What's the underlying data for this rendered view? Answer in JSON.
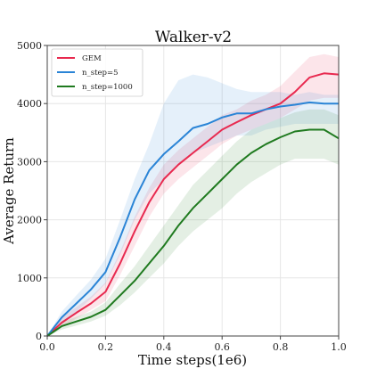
{
  "chart_data": {
    "type": "line",
    "title": "Walker-v2",
    "xlabel": "Time steps(1e6)",
    "ylabel": "Average Return",
    "xlim": [
      0,
      1.0
    ],
    "ylim": [
      0,
      5000
    ],
    "xticks": [
      "0.0",
      "0.2",
      "0.4",
      "0.6",
      "0.8",
      "1.0"
    ],
    "yticks": [
      "0",
      "1000",
      "2000",
      "3000",
      "4000",
      "5000"
    ],
    "grid": true,
    "legend_position": "top-left",
    "series": [
      {
        "name": "GEM",
        "color": "#e8294f",
        "x": [
          0,
          0.05,
          0.1,
          0.15,
          0.2,
          0.25,
          0.3,
          0.35,
          0.4,
          0.45,
          0.5,
          0.55,
          0.6,
          0.65,
          0.7,
          0.75,
          0.8,
          0.85,
          0.9,
          0.95,
          1.0
        ],
        "y": [
          0,
          230,
          400,
          560,
          760,
          1250,
          1800,
          2300,
          2700,
          2950,
          3150,
          3350,
          3550,
          3680,
          3800,
          3900,
          4000,
          4200,
          4450,
          4520,
          4500
        ],
        "band_low": [
          0,
          150,
          300,
          450,
          600,
          1050,
          1550,
          2050,
          2450,
          2700,
          2900,
          3100,
          3300,
          3450,
          3550,
          3650,
          3750,
          3900,
          4050,
          4100,
          4100
        ],
        "band_high": [
          0,
          320,
          500,
          680,
          920,
          1450,
          2050,
          2550,
          2950,
          3200,
          3400,
          3600,
          3800,
          3900,
          4050,
          4150,
          4300,
          4550,
          4800,
          4850,
          4800
        ]
      },
      {
        "name": "n_step=5",
        "color": "#2a84d6",
        "x": [
          0,
          0.05,
          0.1,
          0.15,
          0.2,
          0.25,
          0.3,
          0.35,
          0.4,
          0.45,
          0.5,
          0.55,
          0.6,
          0.65,
          0.7,
          0.75,
          0.8,
          0.85,
          0.9,
          0.95,
          1.0
        ],
        "y": [
          0,
          320,
          560,
          800,
          1100,
          1700,
          2350,
          2850,
          3130,
          3350,
          3580,
          3650,
          3760,
          3830,
          3830,
          3900,
          3950,
          3980,
          4020,
          4000,
          4000
        ],
        "band_low": [
          0,
          220,
          420,
          640,
          900,
          1400,
          2000,
          2450,
          2700,
          2950,
          3150,
          3250,
          3350,
          3450,
          3450,
          3550,
          3600,
          3650,
          3650,
          3650,
          3650
        ],
        "band_high": [
          0,
          420,
          700,
          970,
          1330,
          2000,
          2700,
          3300,
          4000,
          4400,
          4500,
          4450,
          4350,
          4250,
          4200,
          4200,
          4200,
          4150,
          4200,
          4150,
          4150
        ]
      },
      {
        "name": "n_step=1000",
        "color": "#1f7a1f",
        "x": [
          0,
          0.05,
          0.1,
          0.15,
          0.2,
          0.25,
          0.3,
          0.35,
          0.4,
          0.45,
          0.5,
          0.55,
          0.6,
          0.65,
          0.7,
          0.75,
          0.8,
          0.85,
          0.9,
          0.95,
          1.0
        ],
        "y": [
          0,
          170,
          250,
          330,
          450,
          700,
          950,
          1250,
          1550,
          1900,
          2200,
          2450,
          2700,
          2950,
          3150,
          3300,
          3420,
          3520,
          3550,
          3550,
          3400
        ],
        "band_low": [
          0,
          110,
          180,
          250,
          350,
          530,
          750,
          1000,
          1250,
          1550,
          1800,
          2000,
          2200,
          2450,
          2650,
          2800,
          2950,
          3050,
          3050,
          3050,
          2950
        ],
        "band_high": [
          0,
          240,
          330,
          420,
          580,
          900,
          1200,
          1550,
          1900,
          2250,
          2600,
          2850,
          3100,
          3350,
          3550,
          3650,
          3750,
          3850,
          3900,
          3900,
          3800
        ]
      }
    ]
  }
}
